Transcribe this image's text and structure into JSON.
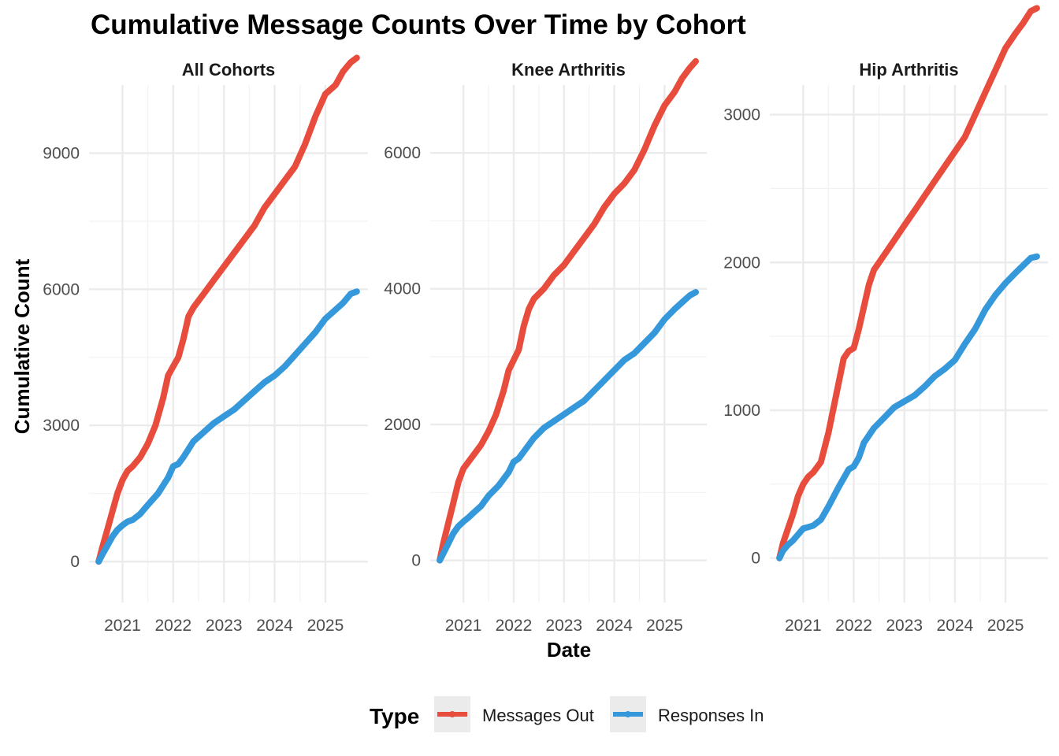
{
  "chart_data": {
    "type": "line",
    "title": "Cumulative Message Counts Over Time by Cohort",
    "xlabel": "Date",
    "ylabel": "Cumulative Count",
    "legend": {
      "title": "Type",
      "position": "bottom",
      "entries": [
        {
          "name": "Messages Out",
          "color": "#E74C3C"
        },
        {
          "name": "Responses In",
          "color": "#3498DB"
        }
      ]
    },
    "x_tick_labels": [
      "2021",
      "2022",
      "2023",
      "2024",
      "2025"
    ],
    "x_ticks": [
      2021,
      2022,
      2023,
      2024,
      2025
    ],
    "grid": true,
    "panels": [
      {
        "name": "All Cohorts",
        "xlim": [
          2020.34,
          2025.84
        ],
        "ylim": [
          -900,
          10500
        ],
        "y_ticks": [
          0,
          3000,
          6000,
          9000
        ],
        "y_tick_labels": [
          "0",
          "3000",
          "6000",
          "9000"
        ],
        "series": [
          {
            "name": "Messages Out",
            "x": [
              2020.53,
              2020.6,
              2020.7,
              2020.8,
              2020.9,
              2021.0,
              2021.1,
              2021.2,
              2021.35,
              2021.5,
              2021.65,
              2021.8,
              2021.9,
              2022.0,
              2022.1,
              2022.2,
              2022.3,
              2022.4,
              2022.6,
              2022.8,
              2023.0,
              2023.2,
              2023.4,
              2023.6,
              2023.8,
              2024.0,
              2024.2,
              2024.4,
              2024.6,
              2024.8,
              2025.0,
              2025.2,
              2025.35,
              2025.5,
              2025.62
            ],
            "values": [
              0,
              300,
              700,
              1100,
              1500,
              1800,
              2000,
              2100,
              2300,
              2600,
              3000,
              3600,
              4100,
              4300,
              4500,
              4900,
              5400,
              5600,
              5900,
              6200,
              6500,
              6800,
              7100,
              7400,
              7800,
              8100,
              8400,
              8700,
              9200,
              9800,
              10300,
              10500,
              10800,
              11000,
              11100
            ]
          },
          {
            "name": "Responses In",
            "x": [
              2020.53,
              2020.6,
              2020.7,
              2020.8,
              2020.9,
              2021.0,
              2021.1,
              2021.2,
              2021.35,
              2021.5,
              2021.7,
              2021.9,
              2022.0,
              2022.1,
              2022.2,
              2022.4,
              2022.6,
              2022.8,
              2023.0,
              2023.2,
              2023.4,
              2023.6,
              2023.8,
              2024.0,
              2024.2,
              2024.4,
              2024.6,
              2024.8,
              2025.0,
              2025.2,
              2025.35,
              2025.5,
              2025.62
            ],
            "values": [
              0,
              150,
              350,
              550,
              700,
              800,
              880,
              920,
              1050,
              1250,
              1500,
              1850,
              2100,
              2150,
              2300,
              2650,
              2850,
              3050,
              3200,
              3350,
              3550,
              3750,
              3950,
              4100,
              4300,
              4550,
              4800,
              5050,
              5350,
              5550,
              5700,
              5900,
              5950
            ]
          }
        ]
      },
      {
        "name": "Knee Arthritis",
        "xlim": [
          2020.34,
          2025.84
        ],
        "ylim": [
          -620,
          7000
        ],
        "y_ticks": [
          0,
          2000,
          4000,
          6000
        ],
        "y_tick_labels": [
          "0",
          "2000",
          "4000",
          "6000"
        ],
        "series": [
          {
            "name": "Messages Out",
            "x": [
              2020.53,
              2020.6,
              2020.7,
              2020.8,
              2020.9,
              2021.0,
              2021.1,
              2021.2,
              2021.35,
              2021.5,
              2021.65,
              2021.8,
              2021.9,
              2022.0,
              2022.1,
              2022.2,
              2022.3,
              2022.4,
              2022.6,
              2022.8,
              2023.0,
              2023.2,
              2023.4,
              2023.6,
              2023.8,
              2024.0,
              2024.2,
              2024.4,
              2024.6,
              2024.8,
              2025.0,
              2025.2,
              2025.35,
              2025.5,
              2025.62
            ],
            "values": [
              0,
              250,
              550,
              850,
              1150,
              1350,
              1450,
              1550,
              1700,
              1900,
              2150,
              2500,
              2800,
              2950,
              3100,
              3450,
              3700,
              3850,
              4000,
              4200,
              4350,
              4550,
              4750,
              4950,
              5200,
              5400,
              5550,
              5750,
              6050,
              6400,
              6700,
              6900,
              7100,
              7250,
              7350
            ]
          },
          {
            "name": "Responses In",
            "x": [
              2020.53,
              2020.6,
              2020.7,
              2020.8,
              2020.9,
              2021.0,
              2021.1,
              2021.2,
              2021.35,
              2021.5,
              2021.7,
              2021.9,
              2022.0,
              2022.1,
              2022.2,
              2022.4,
              2022.6,
              2022.8,
              2023.0,
              2023.2,
              2023.4,
              2023.6,
              2023.8,
              2024.0,
              2024.2,
              2024.4,
              2024.6,
              2024.8,
              2025.0,
              2025.2,
              2025.35,
              2025.5,
              2025.62
            ],
            "values": [
              0,
              100,
              250,
              400,
              500,
              570,
              630,
              700,
              800,
              950,
              1100,
              1300,
              1450,
              1500,
              1600,
              1800,
              1950,
              2050,
              2150,
              2250,
              2350,
              2500,
              2650,
              2800,
              2950,
              3050,
              3200,
              3350,
              3550,
              3700,
              3800,
              3900,
              3950
            ]
          }
        ]
      },
      {
        "name": "Hip Arthritis",
        "xlim": [
          2020.34,
          2025.84
        ],
        "ylim": [
          -300,
          3200
        ],
        "y_ticks": [
          0,
          1000,
          2000,
          3000
        ],
        "y_tick_labels": [
          "0",
          "1000",
          "2000",
          "3000"
        ],
        "series": [
          {
            "name": "Messages Out",
            "x": [
              2020.53,
              2020.6,
              2020.7,
              2020.8,
              2020.9,
              2021.0,
              2021.1,
              2021.2,
              2021.35,
              2021.5,
              2021.65,
              2021.8,
              2021.9,
              2022.0,
              2022.1,
              2022.2,
              2022.3,
              2022.4,
              2022.6,
              2022.8,
              2023.0,
              2023.2,
              2023.4,
              2023.6,
              2023.8,
              2024.0,
              2024.2,
              2024.4,
              2024.6,
              2024.8,
              2025.0,
              2025.2,
              2025.35,
              2025.5,
              2025.62
            ],
            "values": [
              0,
              100,
              200,
              300,
              420,
              500,
              550,
              580,
              650,
              850,
              1100,
              1350,
              1400,
              1420,
              1550,
              1700,
              1850,
              1950,
              2050,
              2150,
              2250,
              2350,
              2450,
              2550,
              2650,
              2750,
              2850,
              3000,
              3150,
              3300,
              3450,
              3550,
              3620,
              3700,
              3720
            ]
          },
          {
            "name": "Responses In",
            "x": [
              2020.53,
              2020.6,
              2020.7,
              2020.8,
              2020.9,
              2021.0,
              2021.1,
              2021.2,
              2021.35,
              2021.5,
              2021.7,
              2021.9,
              2022.0,
              2022.1,
              2022.2,
              2022.4,
              2022.6,
              2022.8,
              2023.0,
              2023.2,
              2023.4,
              2023.6,
              2023.8,
              2024.0,
              2024.2,
              2024.4,
              2024.6,
              2024.8,
              2025.0,
              2025.2,
              2025.35,
              2025.5,
              2025.62
            ],
            "values": [
              0,
              50,
              90,
              120,
              160,
              200,
              210,
              220,
              260,
              350,
              480,
              600,
              620,
              680,
              780,
              880,
              950,
              1020,
              1060,
              1100,
              1160,
              1230,
              1280,
              1340,
              1450,
              1550,
              1680,
              1780,
              1860,
              1930,
              1980,
              2030,
              2040
            ]
          }
        ]
      }
    ]
  }
}
